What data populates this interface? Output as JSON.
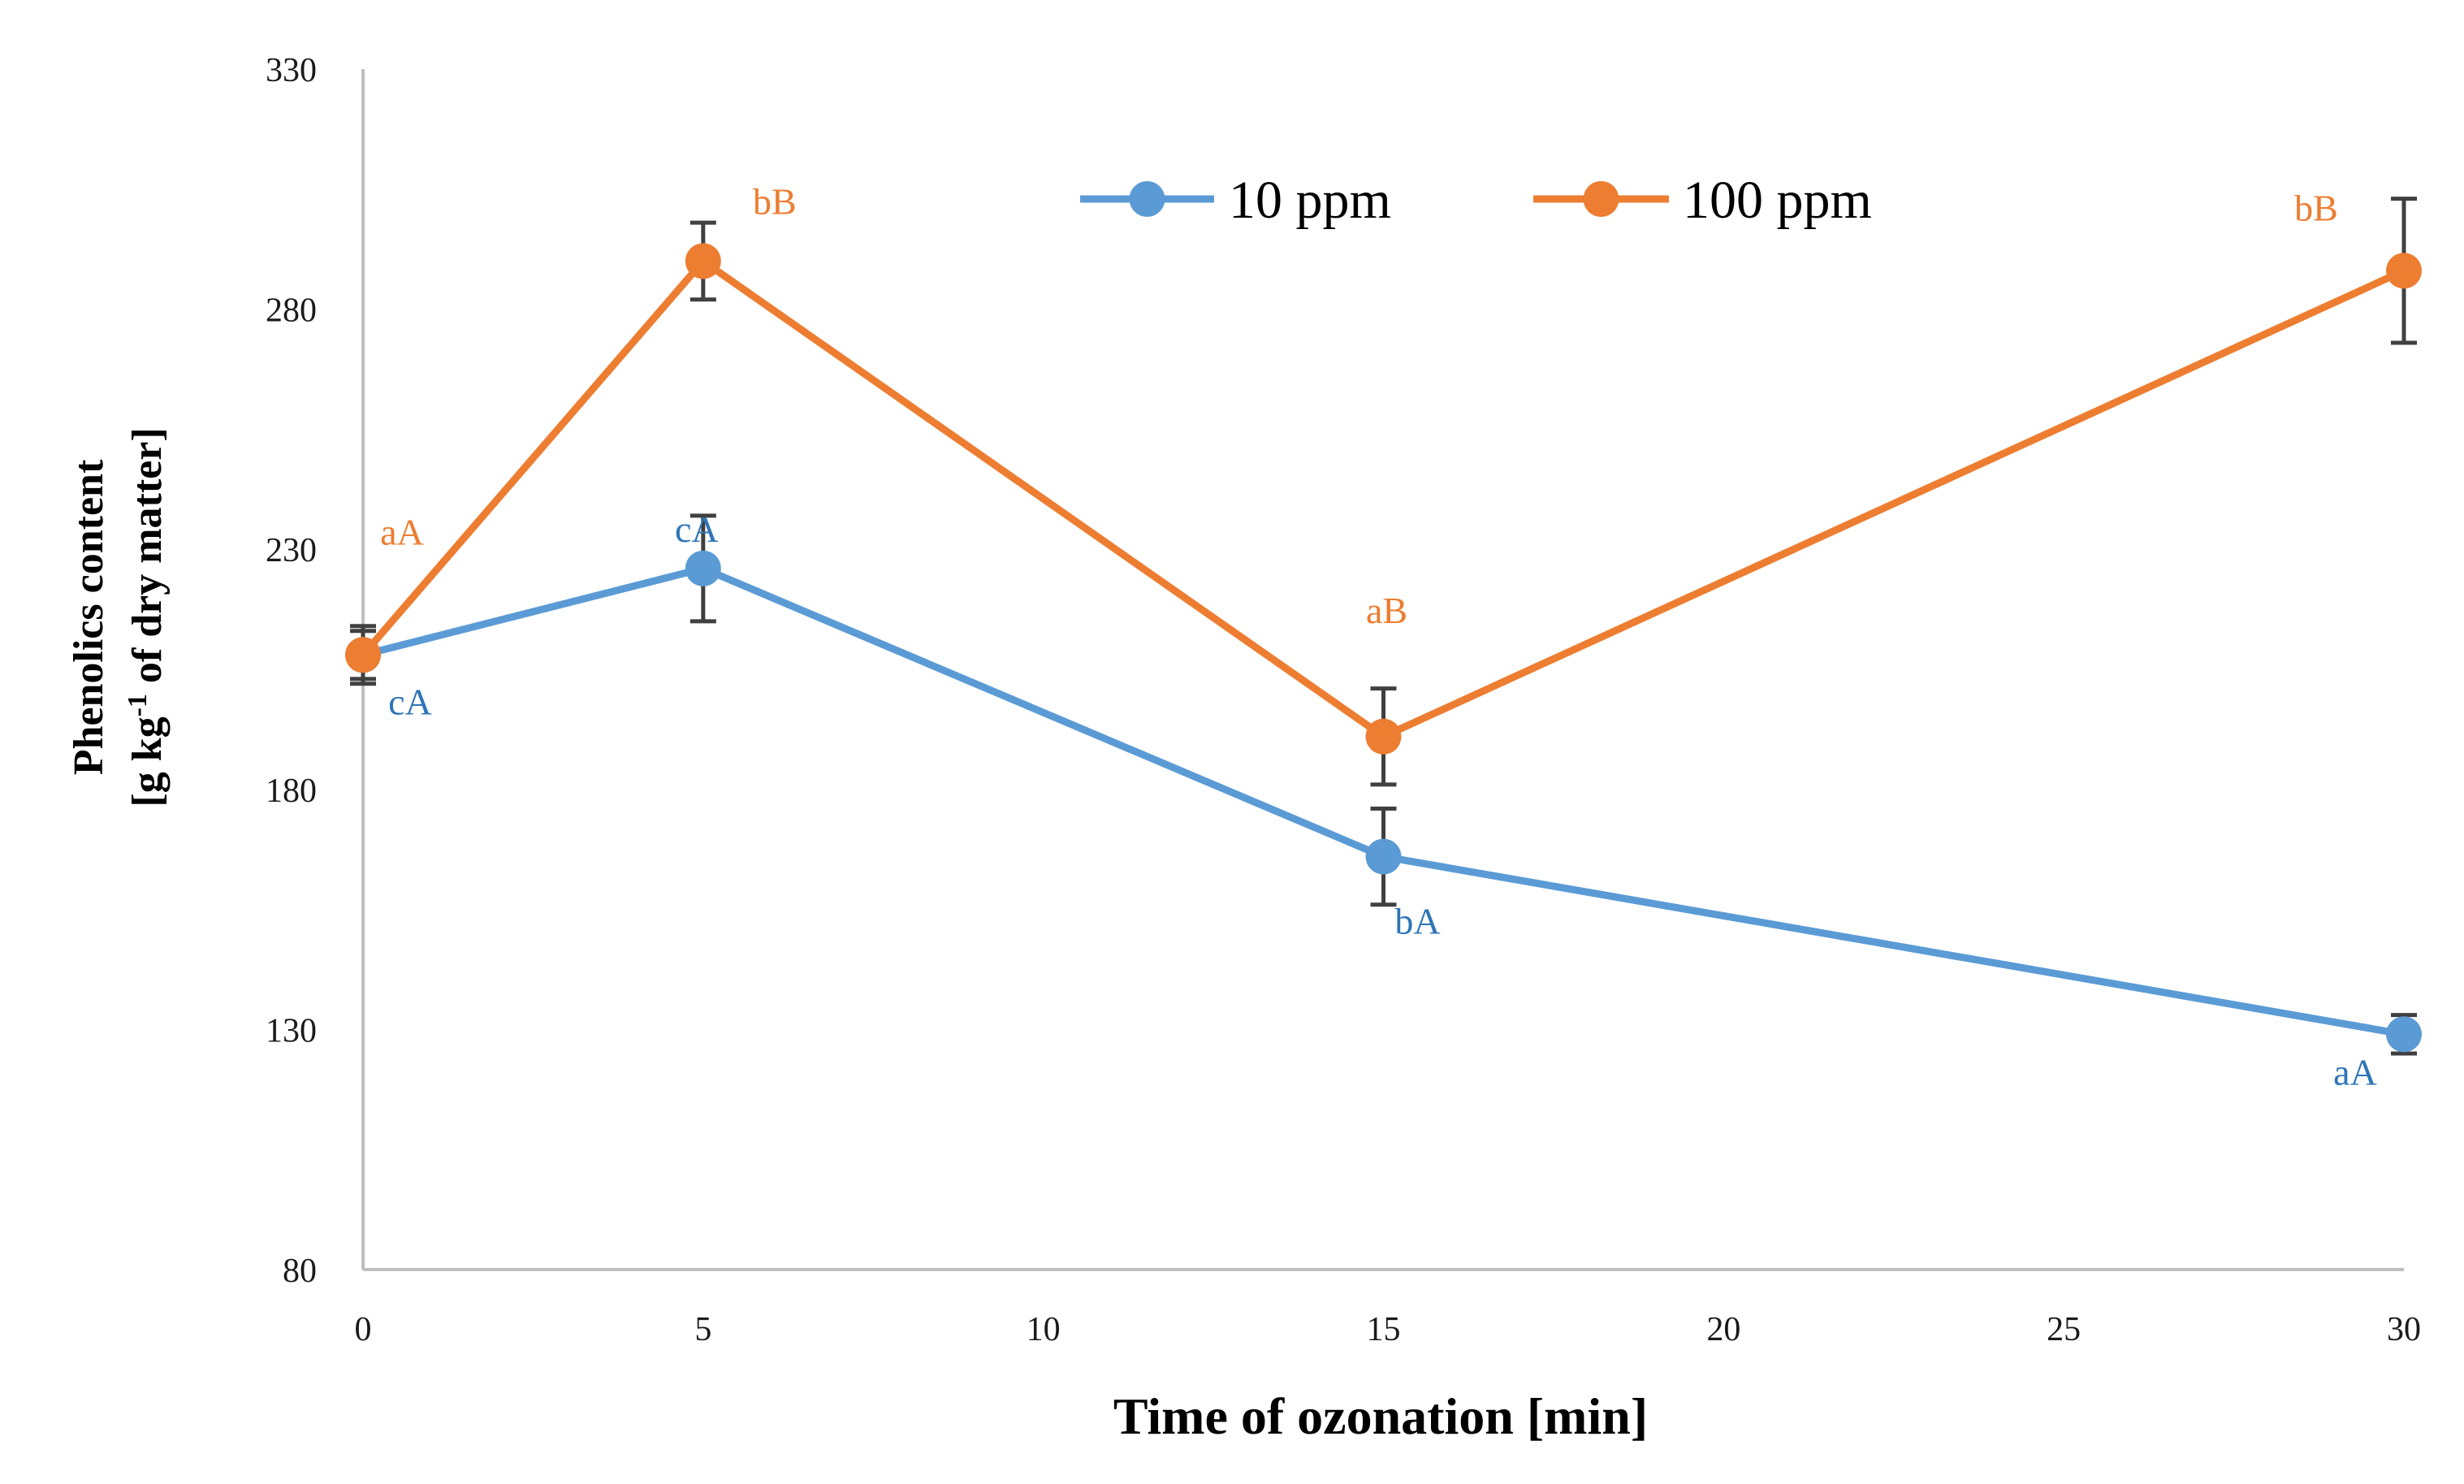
{
  "chart_data": {
    "type": "line",
    "title": "",
    "xlabel": "Time of ozonation [min]",
    "ylabel_line1": "Phenolics content",
    "ylabel_line2_pre": "[g kg",
    "ylabel_superscript": "-1",
    "ylabel_line2_post": " of dry matter]",
    "xlim": [
      0,
      30
    ],
    "ylim": [
      80,
      330
    ],
    "xticks": [
      0,
      5,
      10,
      15,
      20,
      25,
      30
    ],
    "yticks": [
      80,
      130,
      180,
      230,
      280,
      330
    ],
    "grid": false,
    "legend_position": "top-center",
    "x": [
      0,
      5,
      15,
      30
    ],
    "series": [
      {
        "name": "10 ppm",
        "color": "#5b9bd5",
        "label_color": "#2e75b6",
        "values": [
          208,
          226,
          166,
          129
        ],
        "errors": [
          6,
          11,
          10,
          4
        ],
        "annotations": [
          "cA",
          "cA",
          "bA",
          "aA"
        ]
      },
      {
        "name": "100 ppm",
        "color": "#ed7d31",
        "label_color": "#ed7d31",
        "values": [
          208,
          290,
          191,
          288
        ],
        "errors": [
          5,
          8,
          10,
          15
        ],
        "annotations": [
          "aA",
          "bB",
          "aB",
          "bB"
        ]
      }
    ]
  },
  "colors": {
    "axis": "#bfbfbf",
    "errorbar": "#404040"
  }
}
